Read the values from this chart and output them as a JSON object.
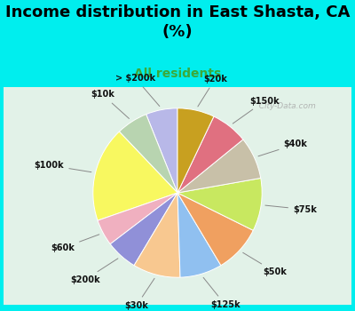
{
  "title": "Income distribution in East Shasta, CA\n(%)",
  "subtitle": "All residents",
  "title_fontsize": 13,
  "subtitle_fontsize": 10,
  "bg_color": "#00EEEE",
  "chart_bg_top": "#d0ede0",
  "chart_bg_bot": "#f0f8f4",
  "labels": [
    "> $200k",
    "$10k",
    "$100k",
    "$60k",
    "$200k",
    "$30k",
    "$125k",
    "$50k",
    "$75k",
    "$40k",
    "$150k",
    "$20k"
  ],
  "values": [
    6,
    6,
    18,
    5,
    6,
    9,
    8,
    9,
    10,
    8,
    7,
    7
  ],
  "colors": [
    "#b8b8e8",
    "#b8d4b0",
    "#f8f860",
    "#f0b0c0",
    "#9090d8",
    "#f8c890",
    "#90c0f0",
    "#f0a060",
    "#c8e860",
    "#c8c0a8",
    "#e07080",
    "#c8a020"
  ],
  "startangle": 90,
  "watermark": "  City-Data.com"
}
